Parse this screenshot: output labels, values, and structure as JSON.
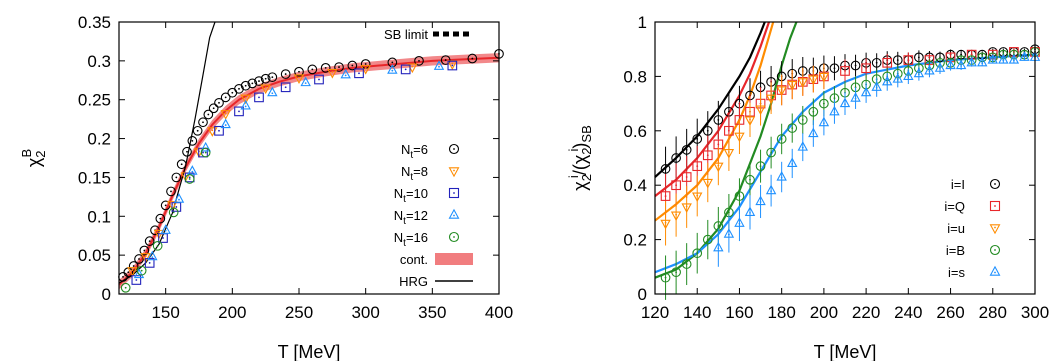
{
  "chart_data": [
    {
      "type": "scatter",
      "xlabel": "T [MeV]",
      "ylabel": "χ2B",
      "xlim": [
        115,
        400
      ],
      "ylim": [
        0,
        0.35
      ],
      "x_ticks": [
        "150",
        "200",
        "250",
        "300",
        "350",
        "400"
      ],
      "y_ticks": [
        "0",
        "0.05",
        "0.1",
        "0.15",
        "0.2",
        "0.25",
        "0.3",
        "0.35"
      ],
      "x_tick_values": [
        150,
        200,
        250,
        300,
        350,
        400
      ],
      "y_tick_values": [
        0,
        0.05,
        0.1,
        0.15,
        0.2,
        0.25,
        0.3,
        0.35
      ],
      "annotation": "SB limit",
      "sb_limit_value": 0.333,
      "legend_position": "right",
      "series": [
        {
          "name": "N",
          "sub": "t",
          "suffix": "=6",
          "marker": "circle",
          "color": "#000000",
          "x": [
            118,
            122,
            126,
            130,
            134,
            138,
            142,
            146,
            150,
            154,
            158,
            162,
            166,
            170,
            174,
            178,
            182,
            186,
            190,
            195,
            200,
            205,
            210,
            215,
            220,
            225,
            230,
            240,
            250,
            260,
            270,
            280,
            290,
            300,
            320,
            340,
            360,
            380,
            400
          ],
          "y": [
            0.022,
            0.028,
            0.036,
            0.045,
            0.056,
            0.068,
            0.082,
            0.097,
            0.114,
            0.132,
            0.15,
            0.167,
            0.183,
            0.197,
            0.21,
            0.221,
            0.231,
            0.239,
            0.246,
            0.253,
            0.259,
            0.264,
            0.268,
            0.271,
            0.274,
            0.277,
            0.279,
            0.283,
            0.286,
            0.289,
            0.291,
            0.292,
            0.294,
            0.296,
            0.298,
            0.3,
            0.301,
            0.303,
            0.309
          ]
        },
        {
          "name": "N",
          "sub": "t",
          "suffix": "=8",
          "marker": "triangle-down",
          "color": "#ff8c00",
          "x": [
            125,
            135,
            145,
            155,
            165,
            175,
            185,
            195,
            210,
            225,
            250,
            275,
            300,
            335,
            365
          ],
          "y": [
            0.03,
            0.048,
            0.078,
            0.115,
            0.152,
            0.183,
            0.21,
            0.232,
            0.252,
            0.265,
            0.278,
            0.285,
            0.29,
            0.292,
            0.296
          ]
        },
        {
          "name": "N",
          "sub": "t",
          "suffix": "=10",
          "marker": "square",
          "color": "#2222bb",
          "x": [
            128,
            138,
            148,
            158,
            168,
            178,
            190,
            205,
            220,
            240,
            265,
            295,
            330,
            365
          ],
          "y": [
            0.018,
            0.04,
            0.072,
            0.112,
            0.15,
            0.182,
            0.21,
            0.235,
            0.253,
            0.266,
            0.276,
            0.284,
            0.289,
            0.294
          ]
        },
        {
          "name": "N",
          "sub": "t",
          "suffix": "=12",
          "marker": "triangle",
          "color": "#1e90ff",
          "x": [
            130,
            140,
            150,
            160,
            170,
            180,
            195,
            210,
            230,
            255,
            285,
            320,
            355
          ],
          "y": [
            0.025,
            0.048,
            0.082,
            0.122,
            0.158,
            0.188,
            0.218,
            0.242,
            0.259,
            0.272,
            0.282,
            0.288,
            0.293
          ]
        },
        {
          "name": "N",
          "sub": "t",
          "suffix": "=16",
          "marker": "circle",
          "color": "#228b22",
          "x": [
            120,
            132,
            144,
            156,
            168,
            180
          ],
          "y": [
            0.008,
            0.03,
            0.062,
            0.105,
            0.148,
            0.182
          ]
        },
        {
          "name": "cont.",
          "marker": "band",
          "color": "#e8262a",
          "x": [
            115,
            125,
            135,
            145,
            155,
            165,
            175,
            185,
            195,
            205,
            220,
            235,
            250,
            270,
            290,
            310,
            330,
            350,
            375,
            400
          ],
          "y": [
            0.012,
            0.028,
            0.052,
            0.086,
            0.126,
            0.163,
            0.194,
            0.218,
            0.236,
            0.25,
            0.264,
            0.273,
            0.28,
            0.286,
            0.291,
            0.294,
            0.297,
            0.3,
            0.302,
            0.304
          ]
        },
        {
          "name": "HRG",
          "marker": "line",
          "color": "#000000",
          "x": [
            115,
            125,
            135,
            145,
            155,
            165,
            172,
            178,
            183,
            187
          ],
          "y": [
            0.014,
            0.024,
            0.04,
            0.064,
            0.104,
            0.165,
            0.225,
            0.282,
            0.33,
            0.35
          ]
        }
      ]
    },
    {
      "type": "scatter",
      "xlabel": "T [MeV]",
      "ylabel": "χ2i/(χ2i)SB",
      "xlim": [
        120,
        300
      ],
      "ylim": [
        0,
        1
      ],
      "x_ticks": [
        "120",
        "140",
        "160",
        "180",
        "200",
        "220",
        "240",
        "260",
        "280",
        "300"
      ],
      "y_ticks": [
        "0",
        "0.2",
        "0.4",
        "0.6",
        "0.8",
        "1"
      ],
      "x_tick_values": [
        120,
        140,
        160,
        180,
        200,
        220,
        240,
        260,
        280,
        300
      ],
      "y_tick_values": [
        0,
        0.2,
        0.4,
        0.6,
        0.8,
        1
      ],
      "legend_position": "right",
      "series": [
        {
          "name": "i=I",
          "marker": "circle",
          "color": "#000000",
          "x": [
            125,
            130,
            135,
            140,
            145,
            150,
            155,
            160,
            165,
            170,
            175,
            180,
            185,
            190,
            195,
            200,
            205,
            210,
            215,
            220,
            225,
            230,
            235,
            240,
            245,
            250,
            255,
            260,
            265,
            270,
            275,
            280,
            285,
            290,
            295,
            300
          ],
          "y": [
            0.46,
            0.5,
            0.53,
            0.57,
            0.6,
            0.64,
            0.67,
            0.7,
            0.73,
            0.76,
            0.78,
            0.8,
            0.81,
            0.82,
            0.82,
            0.83,
            0.83,
            0.84,
            0.84,
            0.85,
            0.85,
            0.86,
            0.86,
            0.86,
            0.87,
            0.87,
            0.87,
            0.88,
            0.88,
            0.88,
            0.88,
            0.89,
            0.89,
            0.89,
            0.89,
            0.9
          ]
        },
        {
          "name": "i=Q",
          "marker": "square",
          "color": "#e8262a",
          "x": [
            125,
            130,
            135,
            140,
            145,
            150,
            155,
            160,
            165,
            170,
            175,
            180,
            185,
            190,
            195,
            200,
            210,
            220,
            230,
            240,
            250,
            260,
            270,
            280,
            290,
            300
          ],
          "y": [
            0.36,
            0.4,
            0.43,
            0.47,
            0.51,
            0.55,
            0.6,
            0.64,
            0.67,
            0.7,
            0.73,
            0.75,
            0.77,
            0.78,
            0.79,
            0.8,
            0.82,
            0.83,
            0.85,
            0.86,
            0.86,
            0.87,
            0.88,
            0.88,
            0.89,
            0.89
          ]
        },
        {
          "name": "i=u",
          "marker": "triangle-down",
          "color": "#ff8c00",
          "x": [
            125,
            130,
            135,
            140,
            145,
            150,
            155,
            160,
            165,
            170,
            175,
            180,
            185,
            190,
            195,
            200
          ],
          "y": [
            0.26,
            0.29,
            0.32,
            0.36,
            0.41,
            0.47,
            0.52,
            0.58,
            0.64,
            0.68,
            0.72,
            0.75,
            0.77,
            0.78,
            0.79,
            0.8
          ]
        },
        {
          "name": "i=B",
          "marker": "circle",
          "color": "#228b22",
          "x": [
            125,
            130,
            135,
            140,
            145,
            150,
            155,
            160,
            165,
            170,
            175,
            180,
            185,
            190,
            195,
            200,
            205,
            210,
            215,
            220,
            225,
            230,
            235,
            240,
            245,
            250,
            255,
            260,
            265,
            270,
            275,
            280,
            285,
            290,
            295,
            300
          ],
          "y": [
            0.06,
            0.08,
            0.11,
            0.15,
            0.2,
            0.25,
            0.3,
            0.36,
            0.42,
            0.47,
            0.52,
            0.57,
            0.61,
            0.64,
            0.67,
            0.7,
            0.72,
            0.74,
            0.76,
            0.77,
            0.79,
            0.8,
            0.81,
            0.82,
            0.83,
            0.84,
            0.85,
            0.85,
            0.86,
            0.86,
            0.87,
            0.87,
            0.88,
            0.88,
            0.88,
            0.89
          ]
        },
        {
          "name": "i=s",
          "marker": "triangle",
          "color": "#1e90ff",
          "x": [
            150,
            155,
            160,
            165,
            170,
            175,
            180,
            185,
            190,
            195,
            200,
            205,
            210,
            215,
            220,
            225,
            230,
            235,
            240,
            245,
            250,
            255,
            260,
            265,
            270,
            275,
            280,
            285,
            290,
            295,
            300
          ],
          "y": [
            0.17,
            0.22,
            0.26,
            0.3,
            0.34,
            0.38,
            0.43,
            0.48,
            0.54,
            0.59,
            0.63,
            0.67,
            0.7,
            0.72,
            0.74,
            0.76,
            0.78,
            0.79,
            0.8,
            0.81,
            0.82,
            0.83,
            0.84,
            0.84,
            0.85,
            0.85,
            0.86,
            0.86,
            0.86,
            0.87,
            0.87
          ]
        }
      ],
      "curves": [
        {
          "color": "#000000",
          "x": [
            120,
            130,
            140,
            150,
            160,
            165,
            170,
            172
          ],
          "y": [
            0.43,
            0.5,
            0.58,
            0.68,
            0.8,
            0.87,
            0.96,
            1.0
          ]
        },
        {
          "color": "#e8262a",
          "x": [
            120,
            130,
            140,
            150,
            160,
            165,
            170,
            174
          ],
          "y": [
            0.36,
            0.42,
            0.5,
            0.6,
            0.73,
            0.81,
            0.91,
            1.0
          ]
        },
        {
          "color": "#ff8c00",
          "x": [
            120,
            130,
            140,
            150,
            160,
            165,
            170,
            176
          ],
          "y": [
            0.27,
            0.33,
            0.4,
            0.5,
            0.64,
            0.73,
            0.84,
            1.0
          ]
        },
        {
          "color": "#228b22",
          "x": [
            120,
            130,
            140,
            150,
            160,
            170,
            175,
            180,
            184,
            187
          ],
          "y": [
            0.06,
            0.09,
            0.15,
            0.24,
            0.38,
            0.58,
            0.7,
            0.84,
            0.94,
            1.0
          ]
        },
        {
          "color": "#1e90ff",
          "x": [
            120,
            130,
            140,
            150,
            160,
            170,
            180,
            190,
            200,
            210,
            220,
            240,
            260,
            280,
            300
          ],
          "y": [
            0.08,
            0.11,
            0.15,
            0.22,
            0.32,
            0.45,
            0.58,
            0.67,
            0.74,
            0.78,
            0.81,
            0.84,
            0.86,
            0.87,
            0.88
          ]
        }
      ]
    }
  ]
}
